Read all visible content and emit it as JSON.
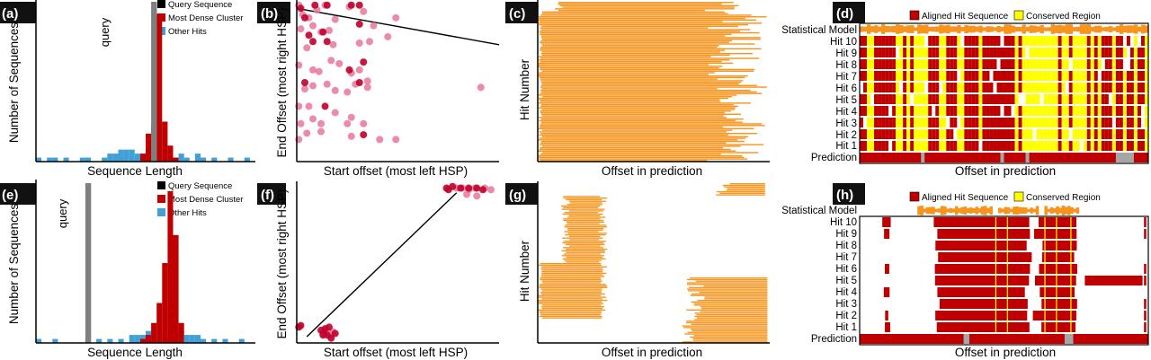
{
  "colors": {
    "query": "#7f7f7f",
    "dense": "#c00000",
    "other": "#3fa1d8",
    "hit": "#f7941d",
    "aligned": "#c00000",
    "conserved": "#ffff00",
    "scatter_light": "#e8769a",
    "scatter_dark": "#c0002a",
    "gap": "#a6a6a6"
  },
  "chart_data": [
    {
      "panel": "(a)",
      "type": "bar",
      "xlabel": "Sequence Length",
      "ylabel": "Number of Sequences",
      "query_label": "query",
      "legend": [
        "Query Sequence",
        "Most Dense Cluster",
        "Other Hits"
      ],
      "bins": 40,
      "query_bin": 21,
      "ylim": [
        0,
        40
      ],
      "series": [
        {
          "name": "Most Dense Cluster",
          "values": [
            0,
            0,
            0,
            0,
            0,
            0,
            0,
            0,
            0,
            0,
            0,
            0,
            0,
            0,
            0,
            0,
            0,
            0,
            0,
            2,
            7,
            9,
            37,
            10,
            4,
            1,
            0,
            0,
            0,
            0,
            0,
            0,
            0,
            0,
            0,
            0,
            0,
            0,
            0,
            0
          ]
        },
        {
          "name": "Other Hits",
          "values": [
            1,
            0,
            1,
            1,
            0,
            1,
            0,
            0,
            1,
            1,
            0,
            0,
            1,
            2,
            2,
            3,
            3,
            3,
            2,
            0,
            0,
            0,
            0,
            0,
            0,
            0,
            2,
            1,
            0,
            2,
            1,
            0,
            1,
            0,
            0,
            1,
            0,
            0,
            1,
            0
          ]
        }
      ]
    },
    {
      "panel": "(b)",
      "type": "scatter",
      "xlabel": "Start offset (most left HSP)",
      "ylabel": "End Offset (most right HSP)",
      "xlim": [
        0,
        100
      ],
      "ylim": [
        0,
        100
      ],
      "trend": [
        [
          0,
          97
        ],
        [
          100,
          74
        ]
      ],
      "points_light": [
        [
          1,
          99
        ],
        [
          3,
          93
        ],
        [
          6,
          91
        ],
        [
          10,
          96
        ],
        [
          14,
          99
        ],
        [
          2,
          84
        ],
        [
          8,
          86
        ],
        [
          12,
          82
        ],
        [
          19,
          90
        ],
        [
          26,
          98
        ],
        [
          33,
          95
        ],
        [
          38,
          86
        ],
        [
          45,
          79
        ],
        [
          49,
          91
        ],
        [
          16,
          83
        ],
        [
          5,
          72
        ],
        [
          18,
          74
        ],
        [
          31,
          75
        ],
        [
          36,
          76
        ],
        [
          1,
          61
        ],
        [
          8,
          58
        ],
        [
          11,
          57
        ],
        [
          17,
          64
        ],
        [
          21,
          62
        ],
        [
          27,
          56
        ],
        [
          31,
          58
        ],
        [
          35,
          51
        ],
        [
          4,
          46
        ],
        [
          8,
          48
        ],
        [
          15,
          49
        ],
        [
          19,
          45
        ],
        [
          25,
          44
        ],
        [
          29,
          49
        ],
        [
          35,
          47
        ],
        [
          1,
          35
        ],
        [
          6,
          35
        ],
        [
          19,
          31
        ],
        [
          27,
          28
        ],
        [
          2,
          24
        ],
        [
          8,
          27
        ],
        [
          12,
          24
        ],
        [
          25,
          24
        ],
        [
          33,
          24
        ],
        [
          1,
          14
        ],
        [
          5,
          18
        ],
        [
          12,
          19
        ],
        [
          27,
          16
        ],
        [
          41,
          14
        ],
        [
          49,
          14
        ],
        [
          91,
          47
        ]
      ],
      "points_dark": [
        [
          2,
          97
        ],
        [
          4,
          91
        ],
        [
          9,
          99
        ],
        [
          15,
          99
        ],
        [
          27,
          99
        ],
        [
          31,
          99
        ],
        [
          6,
          80
        ],
        [
          13,
          82
        ],
        [
          8,
          76
        ],
        [
          15,
          76
        ],
        [
          31,
          87
        ],
        [
          26,
          58
        ],
        [
          33,
          63
        ],
        [
          4,
          50
        ],
        [
          31,
          50
        ],
        [
          14,
          35
        ],
        [
          33,
          17
        ]
      ]
    },
    {
      "panel": "(c)",
      "type": "bar",
      "orientation": "horizontal",
      "xlabel": "Offset in prediction",
      "ylabel": "Hit Number",
      "rows": 100,
      "xlim": [
        0,
        100
      ],
      "ends_min": 78,
      "ends_max": 99
    },
    {
      "panel": "(d)",
      "type": "heatmap",
      "xlabel": "Offset in prediction",
      "legend": [
        "Aligned Hit Sequence",
        "Conserved Region"
      ],
      "rows": [
        "Statistical Model",
        "Hit 10",
        "Hit 9",
        "Hit 8",
        "Hit 7",
        "Hit 6",
        "Hit 5",
        "Hit 4",
        "Hit 3",
        "Hit 2",
        "Hit 1",
        "Prediction"
      ],
      "conserved_fraction": 0.4
    },
    {
      "panel": "(e)",
      "type": "bar",
      "xlabel": "Sequence Length",
      "ylabel": "Number of Sequences",
      "query_label": "query",
      "legend": [
        "Query Sequence",
        "Most Dense Cluster",
        "Other Hits"
      ],
      "bins": 40,
      "query_bin": 9,
      "ylim": [
        0,
        40
      ],
      "series": [
        {
          "name": "Most Dense Cluster",
          "values": [
            0,
            0,
            0,
            0,
            0,
            0,
            0,
            0,
            0,
            0,
            0,
            0,
            0,
            0,
            0,
            0,
            0,
            0,
            0,
            1,
            2,
            5,
            10,
            20,
            38,
            27,
            5,
            0,
            0,
            0,
            0,
            0,
            0,
            0,
            0,
            0,
            0,
            0,
            0,
            0
          ]
        },
        {
          "name": "Other Hits",
          "values": [
            1,
            0,
            0,
            1,
            0,
            0,
            0,
            0,
            0,
            1,
            0,
            1,
            0,
            1,
            0,
            1,
            0,
            2,
            2,
            2,
            3,
            3,
            3,
            3,
            3,
            3,
            3,
            2,
            2,
            2,
            1,
            0,
            1,
            0,
            1,
            0,
            0,
            1,
            0,
            0
          ]
        }
      ]
    },
    {
      "panel": "(f)",
      "type": "scatter",
      "xlabel": "Start offset (most left HSP)",
      "ylabel": "End Offset (most right HSP)",
      "xlim": [
        0,
        100
      ],
      "ylim": [
        0,
        100
      ],
      "trend": [
        [
          5,
          4
        ],
        [
          79,
          95
        ]
      ],
      "points_light": [
        [
          79,
          98
        ],
        [
          82,
          98
        ],
        [
          85,
          97
        ],
        [
          88,
          98
        ],
        [
          93,
          98
        ],
        [
          96,
          97
        ],
        [
          84,
          94
        ],
        [
          89,
          93
        ],
        [
          13,
          6
        ],
        [
          15,
          7
        ],
        [
          17,
          5
        ],
        [
          18,
          7
        ]
      ],
      "points_dark": [
        [
          74,
          98
        ],
        [
          75,
          97
        ],
        [
          77,
          99
        ],
        [
          81,
          98
        ],
        [
          85,
          98
        ],
        [
          89,
          98
        ],
        [
          92,
          97
        ],
        [
          1,
          10
        ],
        [
          2,
          11
        ],
        [
          12,
          8
        ],
        [
          14,
          9
        ],
        [
          16,
          10
        ],
        [
          15,
          5
        ],
        [
          19,
          6
        ],
        [
          13,
          5
        ],
        [
          17,
          3
        ]
      ]
    },
    {
      "panel": "(g)",
      "type": "bar",
      "orientation": "horizontal",
      "xlabel": "Offset in prediction",
      "ylabel": "Hit Number",
      "rows": 100,
      "xlim": [
        0,
        100
      ]
    },
    {
      "panel": "(h)",
      "type": "heatmap",
      "xlabel": "Offset in prediction",
      "legend": [
        "Aligned Hit Sequence",
        "Conserved Region"
      ],
      "rows": [
        "Statistical Model",
        "Hit 10",
        "Hit 9",
        "Hit 8",
        "Hit 7",
        "Hit 6",
        "Hit 5",
        "Hit 4",
        "Hit 3",
        "Hit 2",
        "Hit 1",
        "Prediction"
      ],
      "conserved_positions": [
        47,
        51,
        64,
        68,
        73
      ]
    }
  ]
}
